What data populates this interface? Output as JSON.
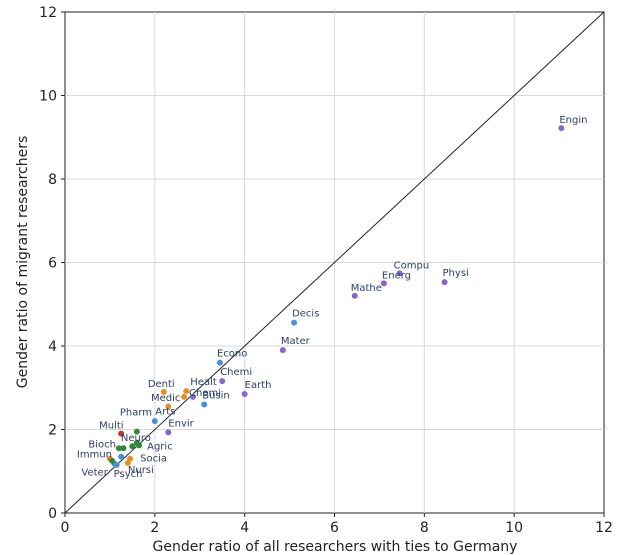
{
  "chart_data": {
    "type": "scatter",
    "xlabel": "Gender ratio of all researchers with ties to Germany",
    "ylabel": "Gender ratio of migrant researchers",
    "xlim": [
      0,
      12
    ],
    "ylim": [
      0,
      12
    ],
    "xticks": [
      "0",
      "2",
      "4",
      "6",
      "8",
      "10",
      "12"
    ],
    "yticks": [
      "0",
      "2",
      "4",
      "6",
      "8",
      "10",
      "12"
    ],
    "grid": true,
    "reference_line": "y = x",
    "colors": {
      "purple": "#8a63d2",
      "blue": "#4a8fe0",
      "orange": "#e8901e",
      "green": "#2e8b3a",
      "red": "#c0392b",
      "line": "#222222",
      "label": "#2b3f66"
    },
    "points": [
      {
        "label": "Engin",
        "x": 11.05,
        "y": 9.22,
        "color": "purple",
        "dx": -2,
        "dy": -5
      },
      {
        "label": "Physi",
        "x": 8.45,
        "y": 5.53,
        "color": "purple",
        "dx": -2,
        "dy": -6
      },
      {
        "label": "Compu",
        "x": 7.45,
        "y": 5.74,
        "color": "purple",
        "dx": -6,
        "dy": -5
      },
      {
        "label": "Energ",
        "x": 7.1,
        "y": 5.5,
        "color": "purple",
        "dx": -2,
        "dy": -5
      },
      {
        "label": "Mathe",
        "x": 6.45,
        "y": 5.2,
        "color": "purple",
        "dx": -4,
        "dy": -5
      },
      {
        "label": "Decis",
        "x": 5.1,
        "y": 4.56,
        "color": "blue",
        "dx": -2,
        "dy": -6
      },
      {
        "label": "Mater",
        "x": 4.85,
        "y": 3.9,
        "color": "purple",
        "dx": -2,
        "dy": -6
      },
      {
        "label": "Econo",
        "x": 3.45,
        "y": 3.6,
        "color": "blue",
        "dx": -3,
        "dy": -6
      },
      {
        "label": "Chemi",
        "x": 3.5,
        "y": 3.16,
        "color": "purple",
        "dx": -2,
        "dy": -6
      },
      {
        "label": "Earth",
        "x": 4.0,
        "y": 2.85,
        "color": "purple",
        "dx": 0,
        "dy": -6
      },
      {
        "label": "Healt",
        "x": 2.7,
        "y": 2.92,
        "color": "orange",
        "dx": 4,
        "dy": -6
      },
      {
        "label": "Chemi",
        "x": 2.85,
        "y": 2.78,
        "color": "purple",
        "dx": -4,
        "dy": -1
      },
      {
        "label": "Denti",
        "x": 2.2,
        "y": 2.9,
        "color": "orange",
        "dx": -16,
        "dy": -5
      },
      {
        "label": "Medic",
        "x": 2.65,
        "y": 2.78,
        "color": "orange",
        "dx": -33,
        "dy": 4
      },
      {
        "label": "Busin",
        "x": 3.1,
        "y": 2.6,
        "color": "blue",
        "dx": -2,
        "dy": -6
      },
      {
        "label": "Arts",
        "x": 2.3,
        "y": 2.55,
        "color": "orange",
        "dx": -13,
        "dy": 8
      },
      {
        "label": "Pharm",
        "x": 1.6,
        "y": 1.95,
        "color": "green",
        "dx": -17,
        "dy": -16
      },
      {
        "label": "Envir",
        "x": 2.3,
        "y": 1.93,
        "color": "purple",
        "dx": 0,
        "dy": -6
      },
      {
        "label": "Multi",
        "x": 1.25,
        "y": 1.9,
        "color": "red",
        "dx": -22,
        "dy": -5
      },
      {
        "label": "Neuro",
        "x": 1.6,
        "y": 1.68,
        "color": "green",
        "dx": -16,
        "dy": -2
      },
      {
        "label": "Agric",
        "x": 1.65,
        "y": 1.62,
        "color": "green",
        "dx": 8,
        "dy": 4
      },
      {
        "label": "Bioch",
        "x": 1.3,
        "y": 1.55,
        "color": "green",
        "dx": -35,
        "dy": -1
      },
      {
        "label": "Immun",
        "x": 1.0,
        "y": 1.3,
        "color": "orange",
        "dx": -33,
        "dy": -1
      },
      {
        "label": "Socia",
        "x": 1.45,
        "y": 1.3,
        "color": "orange",
        "dx": 10,
        "dy": 3
      },
      {
        "label": "Veter",
        "x": 1.1,
        "y": 1.18,
        "color": "blue",
        "dx": -33,
        "dy": 12
      },
      {
        "label": "Psych",
        "x": 1.15,
        "y": 1.15,
        "color": "blue",
        "dx": -3,
        "dy": 12
      },
      {
        "label": "Nursi",
        "x": 1.4,
        "y": 1.2,
        "color": "orange",
        "dx": 0,
        "dy": 10
      },
      {
        "label": "",
        "x": 1.2,
        "y": 1.55,
        "color": "green",
        "dx": 0,
        "dy": 0
      },
      {
        "label": "",
        "x": 1.5,
        "y": 1.6,
        "color": "green",
        "dx": 0,
        "dy": 0
      },
      {
        "label": "",
        "x": 1.25,
        "y": 1.35,
        "color": "blue",
        "dx": 0,
        "dy": 0
      },
      {
        "label": "",
        "x": 1.05,
        "y": 1.25,
        "color": "green",
        "dx": 0,
        "dy": 0
      },
      {
        "label": "",
        "x": 2.0,
        "y": 2.2,
        "color": "blue",
        "dx": 0,
        "dy": 0
      }
    ]
  }
}
